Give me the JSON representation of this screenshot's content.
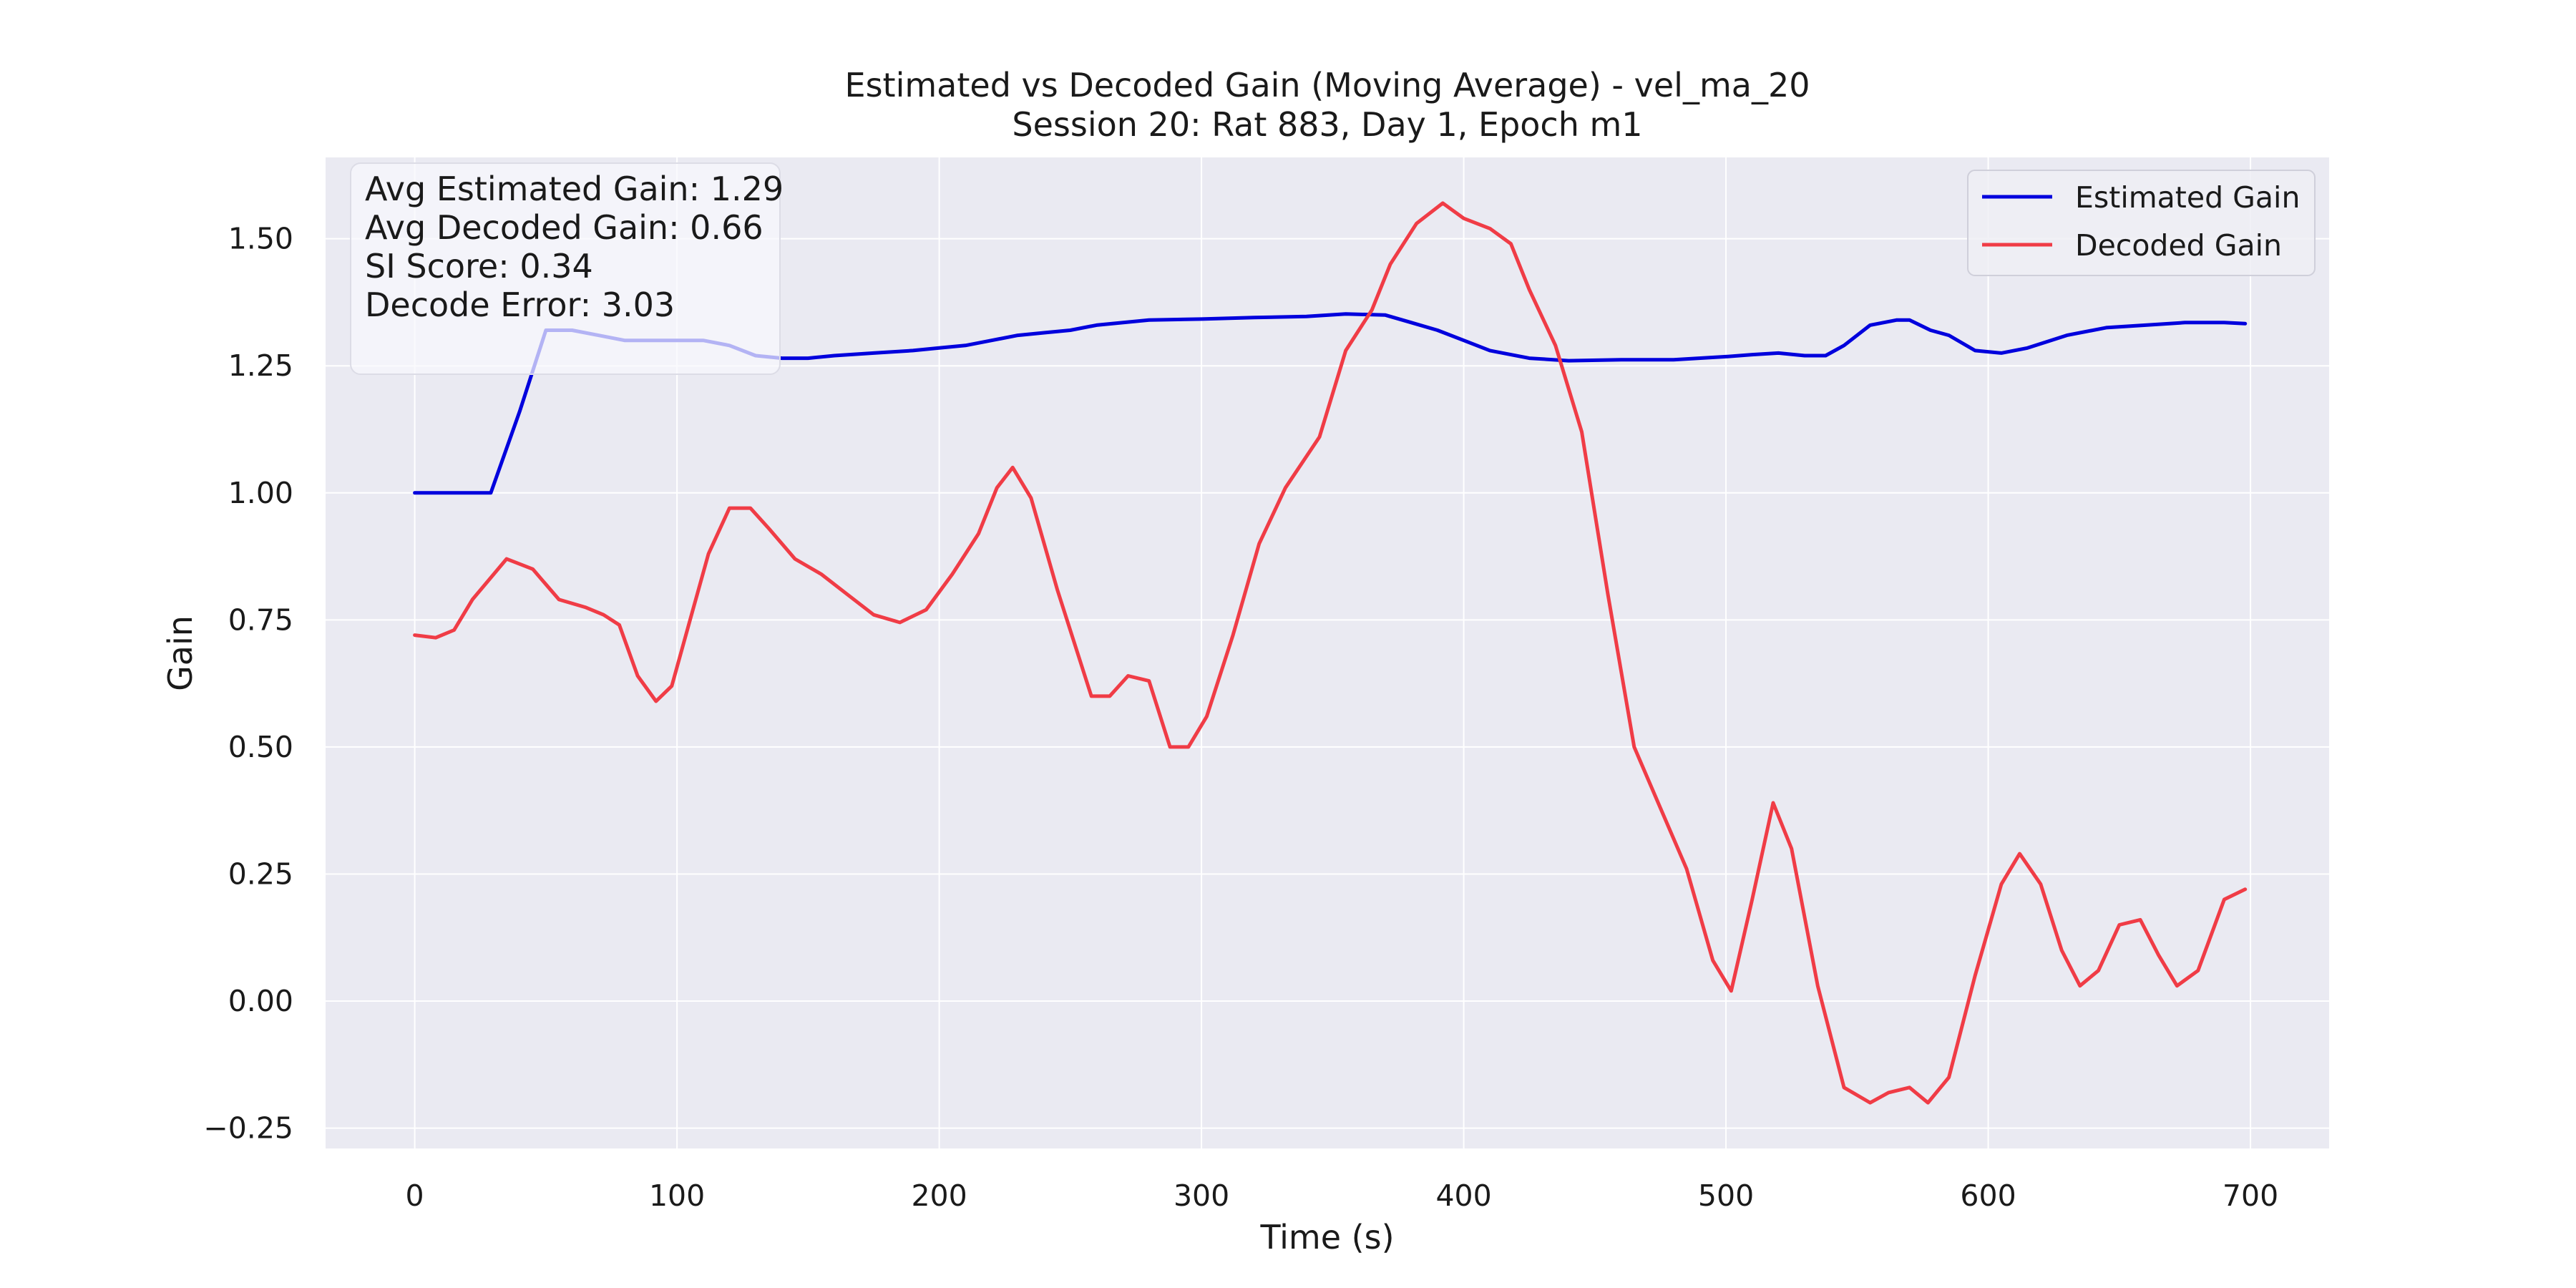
{
  "chart_data": {
    "type": "line",
    "title": "Estimated vs Decoded Gain (Moving Average) - vel_ma_20",
    "subtitle": "Session 20: Rat 883, Day 1, Epoch m1",
    "xlabel": "Time (s)",
    "ylabel": "Gain",
    "xlim": [
      -34,
      730
    ],
    "ylim": [
      -0.29,
      1.66
    ],
    "xticks": [
      0,
      100,
      200,
      300,
      400,
      500,
      600,
      700
    ],
    "xtick_labels": [
      "0",
      "100",
      "200",
      "300",
      "400",
      "500",
      "600",
      "700"
    ],
    "yticks": [
      -0.25,
      0.0,
      0.25,
      0.5,
      0.75,
      1.0,
      1.25,
      1.5
    ],
    "ytick_labels": [
      "−0.25",
      "0.00",
      "0.25",
      "0.50",
      "0.75",
      "1.00",
      "1.25",
      "1.50"
    ],
    "grid": true,
    "legend_position": "top-right",
    "stats_box": {
      "lines": [
        "Avg Estimated Gain: 1.29",
        "Avg Decoded Gain: 0.66",
        "SI Score: 0.34",
        "Decode Error: 3.03"
      ]
    },
    "colors": {
      "background": "#eaeaf2",
      "grid": "#ffffff",
      "estimated": "#0000dd",
      "decoded": "#f03c46",
      "stats_box": "#f8f8fc"
    },
    "series": [
      {
        "name": "Estimated Gain",
        "color": "#0000dd",
        "points": [
          [
            0,
            1.0
          ],
          [
            10,
            1.0
          ],
          [
            20,
            1.0
          ],
          [
            29,
            1.0
          ],
          [
            40,
            1.16
          ],
          [
            50,
            1.32
          ],
          [
            60,
            1.32
          ],
          [
            70,
            1.31
          ],
          [
            80,
            1.3
          ],
          [
            100,
            1.3
          ],
          [
            110,
            1.3
          ],
          [
            120,
            1.29
          ],
          [
            130,
            1.27
          ],
          [
            140,
            1.265
          ],
          [
            150,
            1.265
          ],
          [
            160,
            1.27
          ],
          [
            175,
            1.275
          ],
          [
            190,
            1.28
          ],
          [
            200,
            1.285
          ],
          [
            210,
            1.29
          ],
          [
            220,
            1.3
          ],
          [
            230,
            1.31
          ],
          [
            240,
            1.315
          ],
          [
            250,
            1.32
          ],
          [
            260,
            1.33
          ],
          [
            280,
            1.34
          ],
          [
            300,
            1.342
          ],
          [
            320,
            1.345
          ],
          [
            340,
            1.347
          ],
          [
            355,
            1.352
          ],
          [
            370,
            1.35
          ],
          [
            380,
            1.335
          ],
          [
            390,
            1.32
          ],
          [
            400,
            1.3
          ],
          [
            410,
            1.28
          ],
          [
            425,
            1.265
          ],
          [
            440,
            1.26
          ],
          [
            460,
            1.262
          ],
          [
            480,
            1.262
          ],
          [
            500,
            1.268
          ],
          [
            510,
            1.272
          ],
          [
            520,
            1.275
          ],
          [
            530,
            1.27
          ],
          [
            538,
            1.27
          ],
          [
            545,
            1.29
          ],
          [
            555,
            1.33
          ],
          [
            565,
            1.34
          ],
          [
            570,
            1.34
          ],
          [
            578,
            1.32
          ],
          [
            585,
            1.31
          ],
          [
            595,
            1.28
          ],
          [
            605,
            1.275
          ],
          [
            615,
            1.285
          ],
          [
            630,
            1.31
          ],
          [
            645,
            1.325
          ],
          [
            660,
            1.33
          ],
          [
            675,
            1.335
          ],
          [
            690,
            1.335
          ],
          [
            698,
            1.333
          ]
        ]
      },
      {
        "name": "Decoded Gain",
        "color": "#f03c46",
        "points": [
          [
            0,
            0.72
          ],
          [
            8,
            0.715
          ],
          [
            15,
            0.73
          ],
          [
            22,
            0.79
          ],
          [
            35,
            0.87
          ],
          [
            45,
            0.85
          ],
          [
            55,
            0.79
          ],
          [
            65,
            0.775
          ],
          [
            72,
            0.76
          ],
          [
            78,
            0.74
          ],
          [
            85,
            0.64
          ],
          [
            92,
            0.59
          ],
          [
            98,
            0.62
          ],
          [
            105,
            0.75
          ],
          [
            112,
            0.88
          ],
          [
            120,
            0.97
          ],
          [
            128,
            0.97
          ],
          [
            135,
            0.93
          ],
          [
            145,
            0.87
          ],
          [
            155,
            0.84
          ],
          [
            165,
            0.8
          ],
          [
            175,
            0.76
          ],
          [
            185,
            0.745
          ],
          [
            195,
            0.77
          ],
          [
            205,
            0.84
          ],
          [
            215,
            0.92
          ],
          [
            222,
            1.01
          ],
          [
            228,
            1.05
          ],
          [
            235,
            0.99
          ],
          [
            245,
            0.81
          ],
          [
            258,
            0.6
          ],
          [
            265,
            0.6
          ],
          [
            272,
            0.64
          ],
          [
            280,
            0.63
          ],
          [
            288,
            0.5
          ],
          [
            295,
            0.5
          ],
          [
            302,
            0.56
          ],
          [
            312,
            0.72
          ],
          [
            322,
            0.9
          ],
          [
            332,
            1.01
          ],
          [
            345,
            1.11
          ],
          [
            355,
            1.28
          ],
          [
            365,
            1.36
          ],
          [
            372,
            1.45
          ],
          [
            382,
            1.53
          ],
          [
            392,
            1.57
          ],
          [
            400,
            1.54
          ],
          [
            410,
            1.52
          ],
          [
            418,
            1.49
          ],
          [
            425,
            1.4
          ],
          [
            435,
            1.29
          ],
          [
            445,
            1.12
          ],
          [
            455,
            0.8
          ],
          [
            465,
            0.5
          ],
          [
            475,
            0.38
          ],
          [
            485,
            0.26
          ],
          [
            495,
            0.08
          ],
          [
            502,
            0.02
          ],
          [
            510,
            0.2
          ],
          [
            518,
            0.39
          ],
          [
            525,
            0.3
          ],
          [
            535,
            0.03
          ],
          [
            545,
            -0.17
          ],
          [
            555,
            -0.2
          ],
          [
            562,
            -0.18
          ],
          [
            570,
            -0.17
          ],
          [
            577,
            -0.2
          ],
          [
            585,
            -0.15
          ],
          [
            595,
            0.05
          ],
          [
            605,
            0.23
          ],
          [
            612,
            0.29
          ],
          [
            620,
            0.23
          ],
          [
            628,
            0.1
          ],
          [
            635,
            0.03
          ],
          [
            642,
            0.06
          ],
          [
            650,
            0.15
          ],
          [
            658,
            0.16
          ],
          [
            665,
            0.09
          ],
          [
            672,
            0.03
          ],
          [
            680,
            0.06
          ],
          [
            690,
            0.2
          ],
          [
            698,
            0.22
          ]
        ]
      }
    ]
  }
}
